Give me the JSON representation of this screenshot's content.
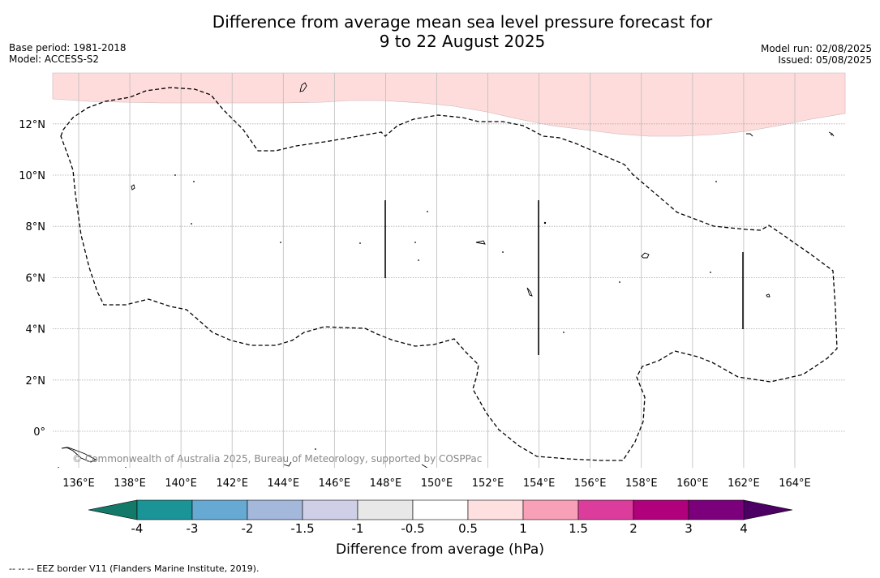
{
  "title_line1": "Difference from average mean sea level pressure forecast for",
  "title_line2": "9 to 22 August 2025",
  "meta_left": [
    "Base period: 1981-2018",
    "Model: ACCESS-S2"
  ],
  "meta_right": [
    "Model run: 02/08/2025",
    "Issued: 05/08/2025"
  ],
  "map": {
    "lon_labels": [
      "136°E",
      "138°E",
      "140°E",
      "142°E",
      "144°E",
      "146°E",
      "148°E",
      "150°E",
      "152°E",
      "154°E",
      "156°E",
      "158°E",
      "160°E",
      "162°E",
      "164°E"
    ],
    "lat_labels": [
      "12°N",
      "10°N",
      "8°N",
      "6°N",
      "4°N",
      "2°N",
      "0°"
    ],
    "copyright": "© Commonwealth of Australia 2025, Bureau of Meteorology, supported by COSPPac",
    "anomaly_fill_color": "#ffdcdc"
  },
  "colorbar": {
    "title": "Difference from average (hPa)",
    "tick_labels": [
      "-4",
      "-3",
      "-2",
      "-1.5",
      "-1",
      "-0.5",
      "0.5",
      "1",
      "1.5",
      "2",
      "3",
      "4"
    ],
    "colors": [
      "#1a9496",
      "#66a9d2",
      "#a4b8dc",
      "#cfcfe8",
      "#e8e8e8",
      "#ffffff",
      "#ffe0e0",
      "#f8a0b8",
      "#dc3c9c",
      "#b0007c",
      "#7c007c"
    ],
    "low_extend_color": "#137a6a",
    "high_extend_color": "#4c0064"
  },
  "footnote": "--  --  -- EEZ border V11 (Flanders Marine Institute, 2019)."
}
